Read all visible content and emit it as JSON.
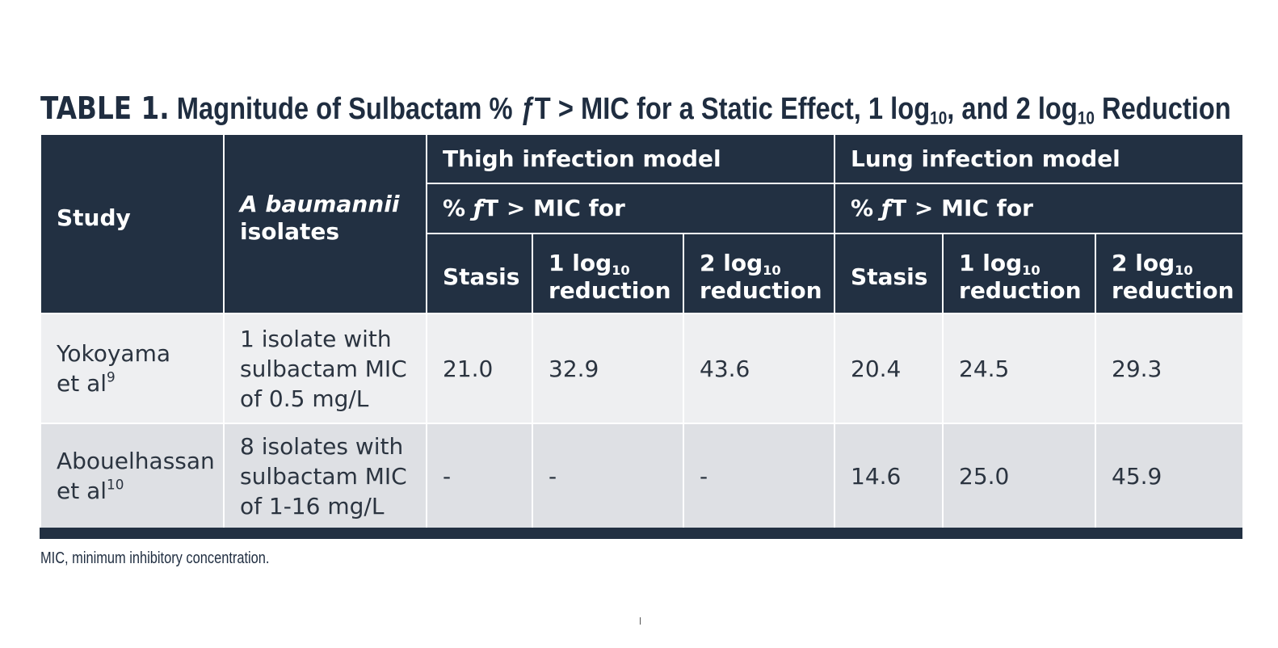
{
  "title": {
    "label": "TABLE 1.",
    "text_a": " Magnitude of Sulbactam % ",
    "f_symbol": "ƒ",
    "text_b": "T > MIC for a Static Effect, 1 log",
    "sub_1": "10",
    "text_c": ", and 2 log",
    "sub_2": "10",
    "text_d": " Reduction"
  },
  "header": {
    "study": "Study",
    "isolates_italic": "A baumannii",
    "isolates_rest": "isolates",
    "thigh_group": "Thigh infection model",
    "lung_group": "Lung infection model",
    "pct_prefix": "% ",
    "f_symbol": "ƒ",
    "pct_suffix": "T > MIC for",
    "stasis": "Stasis",
    "log1": "1 log",
    "log2": "2 log",
    "log_sub": "10",
    "reduction": "reduction"
  },
  "rows": [
    {
      "study_line1": "Yokoyama",
      "study_line2": "et al",
      "ref": "9",
      "isolates": [
        "1 isolate with",
        "sulbactam MIC",
        "of 0.5 mg/L"
      ],
      "thigh": [
        "21.0",
        "32.9",
        "43.6"
      ],
      "lung": [
        "20.4",
        "24.5",
        "29.3"
      ]
    },
    {
      "study_line1": "Abouelhassan",
      "study_line2": "et al",
      "ref": "10",
      "isolates": [
        "8 isolates with",
        "sulbactam MIC",
        "of 1-16 mg/L"
      ],
      "thigh": [
        "-",
        "-",
        "-"
      ],
      "lung": [
        "14.6",
        "25.0",
        "45.9"
      ]
    }
  ],
  "footnote": "MIC, minimum inhibitory concentration.",
  "colors": {
    "header_bg": "#223042",
    "row_light": "#eeeff1",
    "row_dark": "#dee0e4",
    "title_text": "#1f2d40"
  }
}
